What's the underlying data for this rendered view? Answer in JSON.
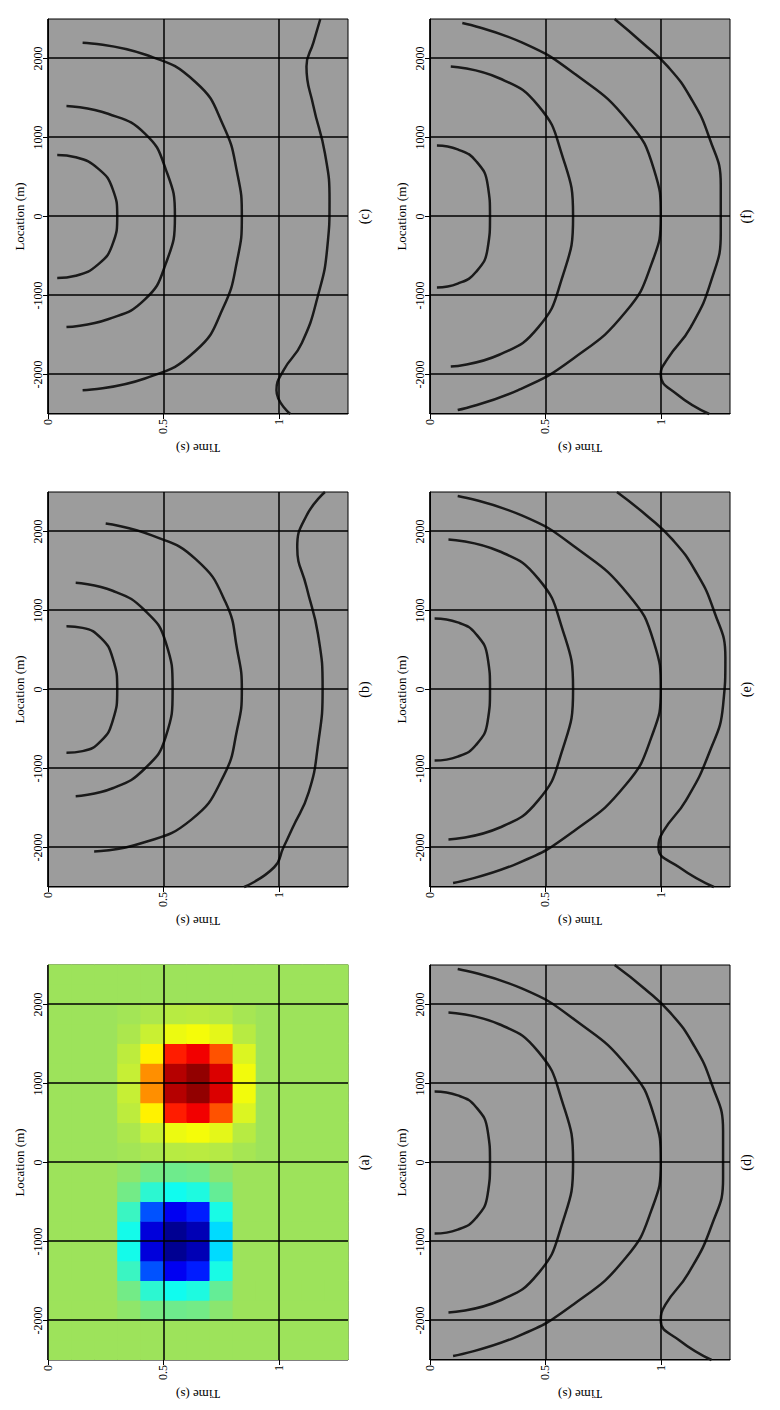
{
  "chart_data": [
    {
      "type": "heatmap",
      "title": "(a)",
      "xlabel": "Location (m)",
      "ylabel": "Time (s)",
      "xlim": [
        -2500,
        2500
      ],
      "xticks": [
        -2000,
        -1000,
        0,
        1000,
        2000
      ],
      "ylim": [
        0,
        1.3
      ],
      "yticks": [
        0,
        0.5,
        1
      ],
      "grid": true,
      "color_range": [
        -1,
        1
      ],
      "x": [
        -2375,
        -2125,
        -1875,
        -1625,
        -1375,
        -1125,
        -875,
        -625,
        -375,
        -125,
        125,
        375,
        625,
        875,
        1125,
        1375,
        1625,
        1875,
        2125,
        2375
      ],
      "y": [
        0.05,
        0.15,
        0.25,
        0.35,
        0.45,
        0.55,
        0.65,
        0.75,
        0.85,
        0.95,
        1.05,
        1.15,
        1.25
      ],
      "values": [
        [
          0,
          0,
          0,
          0,
          0,
          0,
          0,
          0,
          0,
          0,
          0,
          0,
          0,
          0,
          0,
          0,
          0,
          0,
          0,
          0
        ],
        [
          0,
          0,
          0,
          0,
          0,
          0,
          0,
          0,
          0,
          0,
          0,
          0,
          0,
          0,
          0,
          0,
          0,
          0,
          0,
          0
        ],
        [
          0,
          0,
          0,
          0,
          0,
          0,
          0,
          0,
          0,
          0,
          0,
          0,
          0,
          0,
          0,
          0,
          0,
          0,
          0,
          0
        ],
        [
          0,
          0,
          -0.03,
          -0.09,
          -0.21,
          -0.29,
          -0.29,
          -0.21,
          -0.09,
          -0.03,
          0.02,
          0.05,
          0.11,
          0.14,
          0.14,
          0.11,
          0.05,
          0.02,
          0,
          0
        ],
        [
          0,
          0,
          -0.08,
          -0.24,
          -0.56,
          -0.76,
          -0.76,
          -0.56,
          -0.24,
          -0.08,
          0.05,
          0.15,
          0.35,
          0.48,
          0.48,
          0.35,
          0.15,
          0.05,
          0,
          0
        ],
        [
          0,
          0,
          -0.1,
          -0.3,
          -0.7,
          -0.95,
          -0.95,
          -0.7,
          -0.3,
          -0.1,
          0.09,
          0.27,
          0.63,
          0.86,
          0.86,
          0.63,
          0.27,
          0.09,
          0,
          0
        ],
        [
          0,
          0,
          -0.09,
          -0.27,
          -0.63,
          -0.86,
          -0.86,
          -0.63,
          -0.27,
          -0.09,
          0.1,
          0.3,
          0.7,
          0.95,
          0.95,
          0.7,
          0.3,
          0.1,
          0,
          0
        ],
        [
          0,
          0,
          -0.04,
          -0.12,
          -0.28,
          -0.38,
          -0.38,
          -0.28,
          -0.12,
          -0.04,
          0.08,
          0.24,
          0.56,
          0.76,
          0.76,
          0.56,
          0.24,
          0.08,
          0,
          0
        ],
        [
          0,
          0,
          0,
          0,
          0,
          0,
          0,
          0,
          0,
          0,
          0.03,
          0.09,
          0.21,
          0.29,
          0.29,
          0.21,
          0.09,
          0.03,
          0,
          0
        ],
        [
          0,
          0,
          0,
          0,
          0,
          0,
          0,
          0,
          0,
          0,
          0,
          0,
          0,
          0,
          0,
          0,
          0,
          0,
          0,
          0
        ],
        [
          0,
          0,
          0,
          0,
          0,
          0,
          0,
          0,
          0,
          0,
          0,
          0,
          0,
          0,
          0,
          0,
          0,
          0,
          0,
          0
        ],
        [
          0,
          0,
          0,
          0,
          0,
          0,
          0,
          0,
          0,
          0,
          0,
          0,
          0,
          0,
          0,
          0,
          0,
          0,
          0,
          0
        ],
        [
          0,
          0,
          0,
          0,
          0,
          0,
          0,
          0,
          0,
          0,
          0,
          0,
          0,
          0,
          0,
          0,
          0,
          0,
          0,
          0
        ]
      ]
    },
    {
      "type": "line",
      "title": "(b)",
      "xlabel": "Location (m)",
      "ylabel": "Time (s)",
      "xlim": [
        -2500,
        2500
      ],
      "xticks": [
        -2000,
        -1000,
        0,
        1000,
        2000
      ],
      "ylim": [
        0,
        1.3
      ],
      "yticks": [
        0,
        0.5,
        1
      ],
      "grid": true,
      "series": [
        {
          "color": "#1a1a1a",
          "x": [
            -800,
            -780,
            -650,
            -400,
            0,
            400,
            650,
            780,
            800
          ],
          "values": [
            0.08,
            0.15,
            0.23,
            0.28,
            0.3,
            0.28,
            0.23,
            0.15,
            0.08
          ]
        },
        {
          "color": "#1a1a1a",
          "x": [
            -1350,
            -1250,
            -1000,
            -600,
            0,
            600,
            1000,
            1250,
            1350
          ],
          "values": [
            0.12,
            0.28,
            0.42,
            0.51,
            0.54,
            0.51,
            0.42,
            0.28,
            0.12
          ]
        },
        {
          "color": "#1a1a1a",
          "x": [
            -2050,
            -1950,
            -1650,
            -1100,
            -500,
            0,
            500,
            1100,
            1650,
            1950,
            2100
          ],
          "values": [
            0.2,
            0.4,
            0.62,
            0.76,
            0.82,
            0.84,
            0.82,
            0.77,
            0.64,
            0.45,
            0.25
          ]
        },
        {
          "color": "#1a1a1a",
          "x": [
            -2500,
            -2250,
            -2000,
            -1750,
            -1300,
            -700,
            0,
            700,
            1300,
            1800,
            2200,
            2500
          ],
          "values": [
            0.85,
            0.98,
            1.02,
            1.06,
            1.13,
            1.17,
            1.19,
            1.17,
            1.12,
            1.08,
            1.12,
            1.2
          ]
        }
      ]
    },
    {
      "type": "line",
      "title": "(c)",
      "xlabel": "Location (m)",
      "ylabel": "Time (s)",
      "xlim": [
        -2500,
        2500
      ],
      "xticks": [
        -2000,
        -1000,
        0,
        1000,
        2000
      ],
      "ylim": [
        0,
        1.3
      ],
      "yticks": [
        0,
        0.5,
        1
      ],
      "grid": true,
      "series": [
        {
          "color": "#1a1a1a",
          "x": [
            -780,
            -750,
            -600,
            -350,
            0,
            350,
            600,
            750,
            780
          ],
          "values": [
            0.04,
            0.12,
            0.22,
            0.28,
            0.3,
            0.28,
            0.22,
            0.12,
            0.04
          ]
        },
        {
          "color": "#1a1a1a",
          "x": [
            -1400,
            -1300,
            -1050,
            -600,
            0,
            600,
            1050,
            1300,
            1400
          ],
          "values": [
            0.08,
            0.26,
            0.42,
            0.51,
            0.55,
            0.51,
            0.42,
            0.26,
            0.08
          ]
        },
        {
          "color": "#1a1a1a",
          "x": [
            -2200,
            -2050,
            -1700,
            -1150,
            -550,
            0,
            550,
            1150,
            1700,
            2050,
            2200
          ],
          "values": [
            0.15,
            0.42,
            0.64,
            0.76,
            0.82,
            0.84,
            0.82,
            0.76,
            0.64,
            0.42,
            0.15
          ]
        },
        {
          "color": "#1a1a1a",
          "x": [
            -2500,
            -2200,
            -1950,
            -1600,
            -1000,
            -400,
            200,
            800,
            1400,
            1900,
            2200,
            2500
          ],
          "values": [
            1.05,
            0.99,
            1.02,
            1.1,
            1.17,
            1.21,
            1.22,
            1.2,
            1.15,
            1.12,
            1.15,
            1.18
          ]
        }
      ]
    },
    {
      "type": "line",
      "title": "(d)",
      "xlabel": "Location (m)",
      "ylabel": "Time (s)",
      "xlim": [
        -2500,
        2500
      ],
      "xticks": [
        -2000,
        -1000,
        0,
        1000,
        2000
      ],
      "ylim": [
        0,
        1.3
      ],
      "yticks": [
        0,
        0.5,
        1
      ],
      "grid": true,
      "series": [
        {
          "color": "#1a1a1a",
          "x": [
            -900,
            -850,
            -700,
            -400,
            0,
            400,
            700,
            850,
            900
          ],
          "values": [
            0.02,
            0.12,
            0.2,
            0.25,
            0.26,
            0.25,
            0.2,
            0.12,
            0.02
          ]
        },
        {
          "color": "#1a1a1a",
          "x": [
            -1900,
            -1750,
            -1400,
            -800,
            0,
            800,
            1400,
            1750,
            1900
          ],
          "values": [
            0.08,
            0.3,
            0.47,
            0.57,
            0.62,
            0.57,
            0.47,
            0.3,
            0.08
          ]
        },
        {
          "color": "#1a1a1a",
          "x": [
            -2450,
            -2200,
            -1800,
            -1200,
            -600,
            0,
            600,
            1200,
            1800,
            2200,
            2450
          ],
          "values": [
            0.1,
            0.38,
            0.62,
            0.85,
            0.96,
            1.0,
            0.97,
            0.86,
            0.63,
            0.4,
            0.12
          ]
        },
        {
          "color": "#1a1a1a",
          "x": [
            -2500,
            -2250,
            -2000,
            -1800,
            -1400,
            -800,
            -200,
            400,
            1000,
            1500,
            1900,
            2200,
            2500
          ],
          "values": [
            1.22,
            1.08,
            1.0,
            1.02,
            1.12,
            1.22,
            1.27,
            1.27,
            1.22,
            1.14,
            1.04,
            0.93,
            0.8
          ]
        }
      ]
    },
    {
      "type": "line",
      "title": "(e)",
      "xlabel": "Location (m)",
      "ylabel": "Time (s)",
      "xlim": [
        -2500,
        2500
      ],
      "xticks": [
        -2000,
        -1000,
        0,
        1000,
        2000
      ],
      "ylim": [
        0,
        1.3
      ],
      "yticks": [
        0,
        0.5,
        1
      ],
      "grid": true,
      "series": [
        {
          "color": "#1a1a1a",
          "x": [
            -900,
            -850,
            -700,
            -400,
            0,
            400,
            700,
            850,
            900
          ],
          "values": [
            0.02,
            0.12,
            0.2,
            0.25,
            0.26,
            0.25,
            0.2,
            0.12,
            0.02
          ]
        },
        {
          "color": "#1a1a1a",
          "x": [
            -1900,
            -1750,
            -1400,
            -800,
            0,
            800,
            1400,
            1750,
            1900
          ],
          "values": [
            0.08,
            0.3,
            0.47,
            0.57,
            0.62,
            0.57,
            0.47,
            0.3,
            0.08
          ]
        },
        {
          "color": "#1a1a1a",
          "x": [
            -2450,
            -2200,
            -1800,
            -1200,
            -600,
            0,
            600,
            1200,
            1800,
            2200,
            2450
          ],
          "values": [
            0.1,
            0.38,
            0.62,
            0.85,
            0.96,
            1.0,
            0.97,
            0.86,
            0.63,
            0.4,
            0.12
          ]
        },
        {
          "color": "#1a1a1a",
          "x": [
            -2500,
            -2250,
            -2000,
            -1800,
            -1400,
            -800,
            -200,
            400,
            1000,
            1500,
            1900,
            2200,
            2500
          ],
          "values": [
            1.23,
            1.08,
            0.99,
            1.01,
            1.11,
            1.21,
            1.27,
            1.28,
            1.23,
            1.15,
            1.05,
            0.94,
            0.81
          ]
        }
      ]
    },
    {
      "type": "line",
      "title": "(f)",
      "xlabel": "Location (m)",
      "ylabel": "Time (s)",
      "xlim": [
        -2500,
        2500
      ],
      "xticks": [
        -2000,
        -1000,
        0,
        1000,
        2000
      ],
      "ylim": [
        0,
        1.3
      ],
      "yticks": [
        0,
        0.5,
        1
      ],
      "grid": true,
      "series": [
        {
          "color": "#1a1a1a",
          "x": [
            -900,
            -850,
            -700,
            -400,
            0,
            400,
            700,
            850,
            900
          ],
          "values": [
            0.03,
            0.12,
            0.2,
            0.25,
            0.26,
            0.25,
            0.2,
            0.12,
            0.03
          ]
        },
        {
          "color": "#1a1a1a",
          "x": [
            -1900,
            -1750,
            -1400,
            -800,
            0,
            800,
            1400,
            1750,
            1900
          ],
          "values": [
            0.09,
            0.3,
            0.47,
            0.57,
            0.62,
            0.57,
            0.47,
            0.3,
            0.09
          ]
        },
        {
          "color": "#1a1a1a",
          "x": [
            -2450,
            -2200,
            -1800,
            -1200,
            -600,
            0,
            600,
            1200,
            1800,
            2200,
            2450
          ],
          "values": [
            0.12,
            0.38,
            0.62,
            0.85,
            0.96,
            1.0,
            0.97,
            0.86,
            0.63,
            0.4,
            0.14
          ]
        },
        {
          "color": "#1a1a1a",
          "x": [
            -2500,
            -2250,
            -2000,
            -1800,
            -1400,
            -800,
            -200,
            400,
            1000,
            1500,
            1900,
            2200,
            2500
          ],
          "values": [
            1.21,
            1.07,
            1.0,
            1.03,
            1.13,
            1.22,
            1.26,
            1.26,
            1.21,
            1.13,
            1.03,
            0.92,
            0.8
          ]
        }
      ]
    }
  ]
}
